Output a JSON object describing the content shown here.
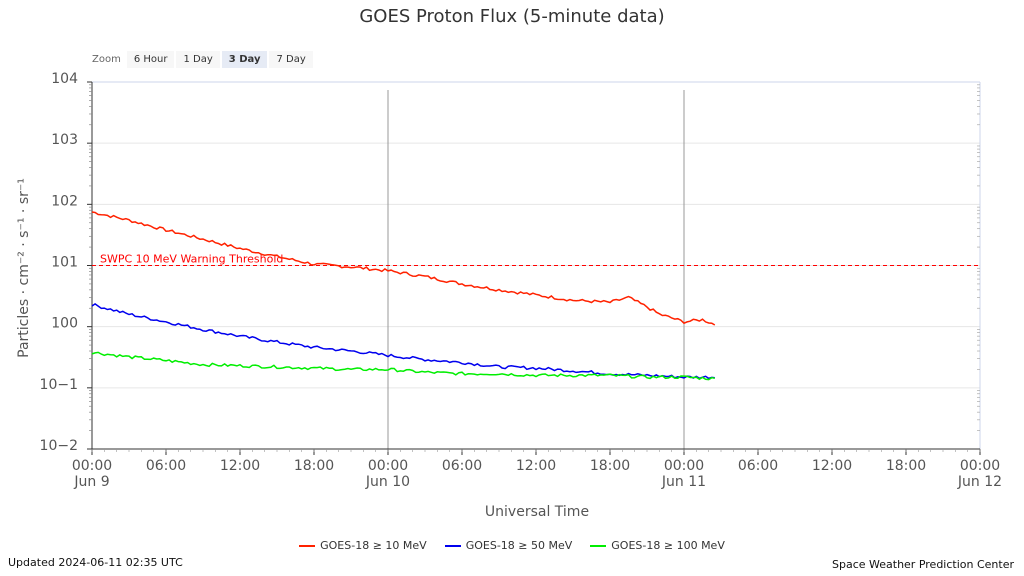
{
  "title": "GOES Proton Flux (5-minute data)",
  "zoom": {
    "label": "Zoom",
    "options": [
      "6 Hour",
      "1 Day",
      "3 Day",
      "7 Day"
    ],
    "selected": "3 Day"
  },
  "updated": "Updated 2024-06-11 02:35 UTC",
  "credit": "Space Weather Prediction Center",
  "chart_data": {
    "type": "line",
    "title": "GOES Proton Flux (5-minute data)",
    "xlabel": "Universal Time",
    "ylabel": "Particles · cm⁻² · s⁻¹ · sr⁻¹",
    "yscale": "log",
    "ylim": [
      0.01,
      10000
    ],
    "xlim": [
      "2024-06-09 00:00",
      "2024-06-12 00:00"
    ],
    "grid": true,
    "legend_position": "bottom",
    "y_ticks": [
      {
        "value": 10000,
        "base": "10",
        "exp": "4"
      },
      {
        "value": 1000,
        "base": "10",
        "exp": "3"
      },
      {
        "value": 100,
        "base": "10",
        "exp": "2"
      },
      {
        "value": 10,
        "base": "10",
        "exp": "1"
      },
      {
        "value": 1,
        "base": "10",
        "exp": "0"
      },
      {
        "value": 0.1,
        "base": "10",
        "exp": "−1"
      },
      {
        "value": 0.01,
        "base": "10",
        "exp": "−2"
      }
    ],
    "x_ticks": [
      {
        "time": "2024-06-09 00:00",
        "label": "00:00",
        "date": "Jun 9"
      },
      {
        "time": "2024-06-09 06:00",
        "label": "06:00",
        "date": ""
      },
      {
        "time": "2024-06-09 12:00",
        "label": "12:00",
        "date": ""
      },
      {
        "time": "2024-06-09 18:00",
        "label": "18:00",
        "date": ""
      },
      {
        "time": "2024-06-10 00:00",
        "label": "00:00",
        "date": "Jun 10"
      },
      {
        "time": "2024-06-10 06:00",
        "label": "06:00",
        "date": ""
      },
      {
        "time": "2024-06-10 12:00",
        "label": "12:00",
        "date": ""
      },
      {
        "time": "2024-06-10 18:00",
        "label": "18:00",
        "date": ""
      },
      {
        "time": "2024-06-11 00:00",
        "label": "00:00",
        "date": "Jun 11"
      },
      {
        "time": "2024-06-11 06:00",
        "label": "06:00",
        "date": ""
      },
      {
        "time": "2024-06-11 12:00",
        "label": "12:00",
        "date": ""
      },
      {
        "time": "2024-06-11 18:00",
        "label": "18:00",
        "date": ""
      },
      {
        "time": "2024-06-12 00:00",
        "label": "00:00",
        "date": "Jun 12"
      }
    ],
    "day_markers": [
      "2024-06-10 00:00",
      "2024-06-11 00:00"
    ],
    "threshold": {
      "value": 10,
      "label": "SWPC 10 MeV Warning Threshold",
      "color": "#ff0000"
    },
    "series": [
      {
        "name": "GOES-18 ≥ 10 MeV",
        "color": "#ff2200",
        "x": [
          "2024-06-09 00:00",
          "2024-06-09 03:00",
          "2024-06-09 06:00",
          "2024-06-09 09:00",
          "2024-06-09 12:00",
          "2024-06-09 15:00",
          "2024-06-09 18:00",
          "2024-06-09 21:00",
          "2024-06-10 00:00",
          "2024-06-10 03:00",
          "2024-06-10 06:00",
          "2024-06-10 09:00",
          "2024-06-10 12:00",
          "2024-06-10 15:00",
          "2024-06-10 18:00",
          "2024-06-10 19:30",
          "2024-06-10 21:00",
          "2024-06-10 22:00",
          "2024-06-11 00:00",
          "2024-06-11 01:30",
          "2024-06-11 02:35"
        ],
        "y": [
          75,
          55,
          38,
          27,
          19,
          14,
          10.5,
          9.5,
          8.2,
          6.6,
          5.0,
          4.0,
          3.3,
          2.7,
          2.5,
          3.0,
          2.1,
          1.6,
          1.2,
          1.3,
          1.07
        ]
      },
      {
        "name": "GOES-18 ≥ 50 MeV",
        "color": "#0000ee",
        "x": [
          "2024-06-09 00:00",
          "2024-06-09 03:00",
          "2024-06-09 06:00",
          "2024-06-09 09:00",
          "2024-06-09 12:00",
          "2024-06-09 15:00",
          "2024-06-09 18:00",
          "2024-06-09 21:00",
          "2024-06-10 00:00",
          "2024-06-10 03:00",
          "2024-06-10 06:00",
          "2024-06-10 09:00",
          "2024-06-10 12:00",
          "2024-06-10 15:00",
          "2024-06-10 18:00",
          "2024-06-10 21:00",
          "2024-06-11 00:00",
          "2024-06-11 02:35"
        ],
        "y": [
          2.3,
          1.6,
          1.2,
          0.9,
          0.7,
          0.56,
          0.46,
          0.4,
          0.34,
          0.29,
          0.26,
          0.22,
          0.21,
          0.19,
          0.17,
          0.16,
          0.15,
          0.15
        ]
      },
      {
        "name": "GOES-18 ≥ 100 MeV",
        "color": "#00ee00",
        "x": [
          "2024-06-09 00:00",
          "2024-06-09 03:00",
          "2024-06-09 06:00",
          "2024-06-09 09:00",
          "2024-06-09 12:00",
          "2024-06-09 15:00",
          "2024-06-09 18:00",
          "2024-06-09 21:00",
          "2024-06-10 00:00",
          "2024-06-10 03:00",
          "2024-06-10 06:00",
          "2024-06-10 09:00",
          "2024-06-10 12:00",
          "2024-06-10 15:00",
          "2024-06-10 18:00",
          "2024-06-10 21:00",
          "2024-06-11 00:00",
          "2024-06-11 02:35"
        ],
        "y": [
          0.38,
          0.32,
          0.28,
          0.24,
          0.23,
          0.22,
          0.21,
          0.2,
          0.2,
          0.18,
          0.17,
          0.17,
          0.16,
          0.16,
          0.16,
          0.15,
          0.15,
          0.14
        ]
      }
    ]
  }
}
